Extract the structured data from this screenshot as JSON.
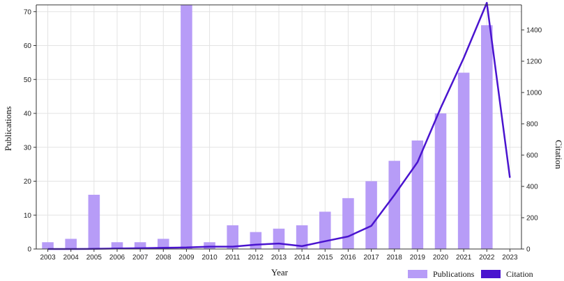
{
  "chart_data": {
    "type": "bar",
    "categories": [
      "2003",
      "2004",
      "2005",
      "2006",
      "2007",
      "2008",
      "2009",
      "2010",
      "2011",
      "2012",
      "2013",
      "2014",
      "2015",
      "2016",
      "2017",
      "2018",
      "2019",
      "2020",
      "2021",
      "2022",
      "2023"
    ],
    "series": [
      {
        "name": "Publications",
        "type": "bar",
        "axis": "left",
        "color": "#b79cf7",
        "values": [
          2,
          3,
          16,
          2,
          2,
          3,
          72,
          2,
          7,
          5,
          6,
          7,
          11,
          15,
          20,
          26,
          32,
          40,
          52,
          66,
          null
        ]
      },
      {
        "name": "Citation",
        "type": "line",
        "axis": "right",
        "color": "#4a14cf",
        "values": [
          0,
          0,
          1,
          3,
          5,
          8,
          10,
          15,
          15,
          28,
          35,
          18,
          50,
          80,
          148,
          345,
          555,
          900,
          1220,
          1590,
          455
        ]
      }
    ],
    "xlabel": "Year",
    "ylabel": "Publications",
    "y2label": "Citation",
    "ylim": [
      0,
      72
    ],
    "y2lim": [
      0,
      1560
    ],
    "yticks": [
      0,
      10,
      20,
      30,
      40,
      50,
      60,
      70
    ],
    "y2ticks": [
      0,
      200,
      400,
      600,
      800,
      1000,
      1200,
      1400
    ],
    "grid": true,
    "legend": "bottom-right"
  }
}
